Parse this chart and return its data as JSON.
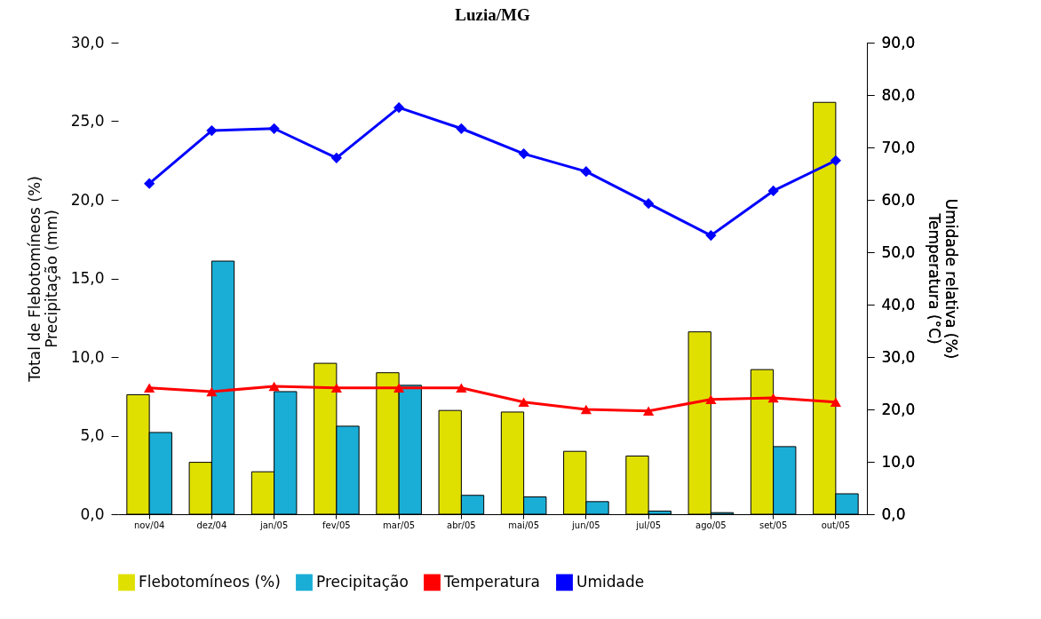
{
  "chart_data": {
    "type": "bar",
    "title": "Luzia/MG",
    "ylabel": "Total de Flebotomíneos (%)\nPrecipitação (mm)",
    "y2label": "Umidade relativa (%)\nTemperatura (°C)",
    "categories": [
      "nov/04",
      "dez/04",
      "jan/05",
      "fev/05",
      "mar/05",
      "abr/05",
      "mai/05",
      "jun/05",
      "jul/05",
      "ago/05",
      "set/05",
      "out/05"
    ],
    "series": [
      {
        "name": "Flebotomíneos (%)",
        "color": "#e0e000",
        "values": [
          7.6,
          3.3,
          2.7,
          9.6,
          9.0,
          6.6,
          6.5,
          4.0,
          3.7,
          11.6,
          9.2,
          26.2
        ]
      },
      {
        "name": "Precipitação",
        "color": "#1aaed6",
        "values": [
          5.2,
          16.1,
          7.8,
          5.6,
          8.2,
          1.2,
          1.1,
          0.8,
          0.2,
          0.1,
          4.3,
          1.3
        ]
      },
      {
        "name": "Temperatura",
        "type": "line",
        "axis": "y2",
        "marker": "triangle",
        "color": "#ff0000",
        "values": [
          24.1,
          23.4,
          24.4,
          24.1,
          24.1,
          24.1,
          21.4,
          20.0,
          19.7,
          21.9,
          22.2,
          21.4
        ]
      },
      {
        "name": "Umidade",
        "type": "line",
        "axis": "y2",
        "marker": "diamond",
        "color": "#0000ff",
        "values": [
          63.1,
          73.2,
          73.6,
          68.0,
          77.6,
          73.6,
          68.8,
          65.4,
          59.3,
          53.2,
          61.7,
          67.5
        ]
      }
    ],
    "ylim": [
      0,
      30
    ],
    "yticks": [
      {
        "value": 0,
        "label": "0,0"
      },
      {
        "value": 5,
        "label": "5,0"
      },
      {
        "value": 10,
        "label": "10,0"
      },
      {
        "value": 15,
        "label": "15,0"
      },
      {
        "value": 20,
        "label": "20,0"
      },
      {
        "value": 25,
        "label": "25,0"
      },
      {
        "value": 30,
        "label": "30,0"
      }
    ],
    "y2lim": [
      0,
      90
    ],
    "y2ticks": [
      {
        "value": 0,
        "label": "0,0"
      },
      {
        "value": 10,
        "label": "10,0"
      },
      {
        "value": 20,
        "label": "20,0"
      },
      {
        "value": 30,
        "label": "30,0"
      },
      {
        "value": 40,
        "label": "40,0"
      },
      {
        "value": 50,
        "label": "50,0"
      },
      {
        "value": 60,
        "label": "60,0"
      },
      {
        "value": 70,
        "label": "70,0"
      },
      {
        "value": 80,
        "label": "80,0"
      },
      {
        "value": 90,
        "label": "90,0"
      }
    ],
    "grid": false,
    "legend": "bottom"
  }
}
